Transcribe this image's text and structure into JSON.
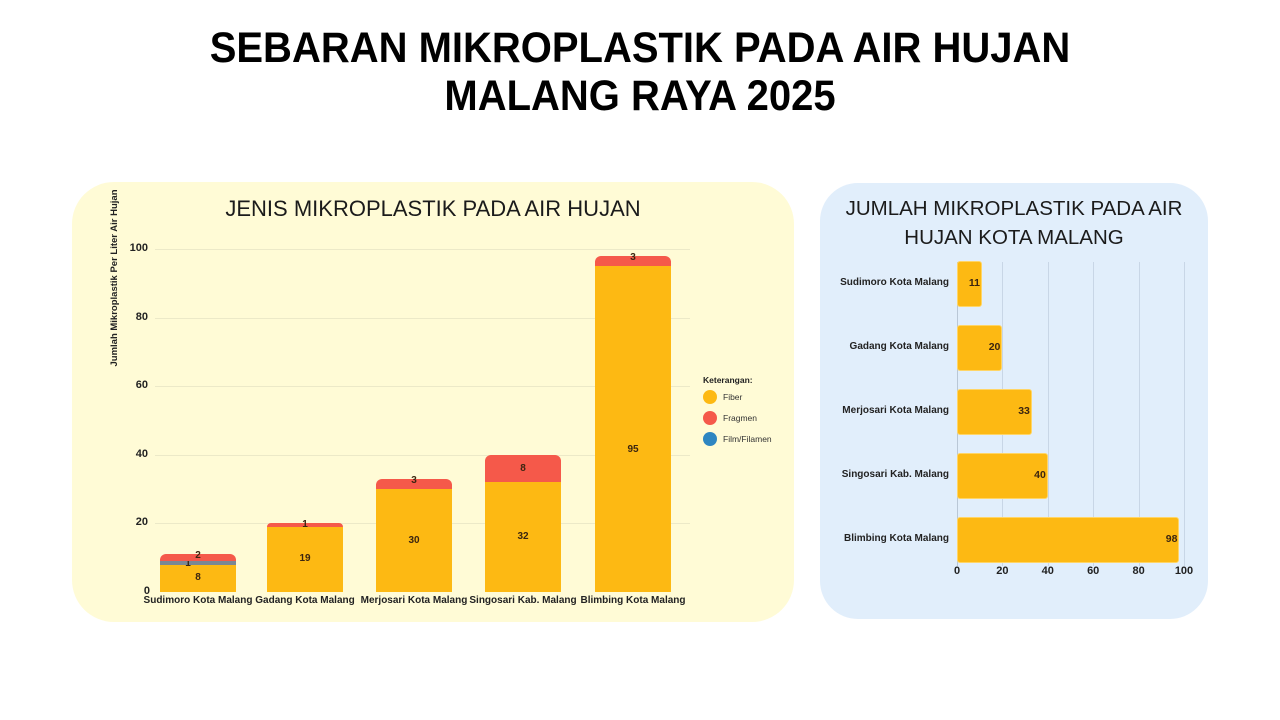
{
  "header": {
    "title_line1": "SEBARAN MIKROPLASTIK PADA AIR HUJAN",
    "title_line2": "MALANG RAYA 2025"
  },
  "colors": {
    "fiber": "#fdb913",
    "fragmen": "#f5594a",
    "film_filamen": "#2e86c1",
    "film_segment_rendered": "#7b8794",
    "left_panel_bg": "#fffbd6",
    "right_panel_bg": "#e1eefb"
  },
  "left_chart": {
    "title": "JENIS MIKROPLASTIK PADA AIR HUJAN",
    "ylabel": "Jumlah Mikroplastik Per Liter Air Hujan",
    "yticks": [
      "0",
      "20",
      "40",
      "60",
      "80",
      "100"
    ],
    "categories": [
      "Sudimoro Kota Malang",
      "Gadang Kota Malang",
      "Merjosari Kota Malang",
      "Singosari Kab. Malang",
      "Blimbing Kota Malang"
    ],
    "fiber_labels": [
      "8",
      "19",
      "30",
      "32",
      "95"
    ],
    "film_labels": [
      "1",
      "",
      "",
      "",
      ""
    ],
    "fragmen_labels": [
      "2",
      "1",
      "3",
      "8",
      "3"
    ],
    "legend": {
      "title": "Keterangan:",
      "items": [
        "Fiber",
        "Fragmen",
        "Film/Filamen"
      ]
    }
  },
  "right_chart": {
    "title_line1": "JUMLAH MIKROPLASTIK PADA AIR",
    "title_line2": "HUJAN KOTA MALANG",
    "categories": [
      "Sudimoro Kota Malang",
      "Gadang Kota Malang",
      "Merjosari Kota Malang",
      "Singosari Kab. Malang",
      "Blimbing Kota Malang"
    ],
    "value_labels": [
      "11",
      "20",
      "33",
      "40",
      "98"
    ],
    "xticks": [
      "0",
      "20",
      "40",
      "60",
      "80",
      "100"
    ]
  },
  "chart_data": [
    {
      "type": "bar",
      "stacked": true,
      "title": "JENIS MIKROPLASTIK PADA AIR HUJAN",
      "xlabel": "",
      "ylabel": "Jumlah Mikroplastik Per Liter Air Hujan",
      "ylim": [
        0,
        100
      ],
      "yticks": [
        0,
        20,
        40,
        60,
        80,
        100
      ],
      "grid": true,
      "legend_position": "right",
      "legend_title": "Keterangan:",
      "categories": [
        "Sudimoro Kota Malang",
        "Gadang Kota Malang",
        "Merjosari Kota Malang",
        "Singosari Kab. Malang",
        "Blimbing Kota Malang"
      ],
      "series": [
        {
          "name": "Fiber",
          "color": "#fdb913",
          "values": [
            8,
            19,
            30,
            32,
            95
          ]
        },
        {
          "name": "Film/Filamen",
          "color": "#2e86c1",
          "values": [
            1,
            0,
            0,
            0,
            0
          ]
        },
        {
          "name": "Fragmen",
          "color": "#f5594a",
          "values": [
            2,
            1,
            3,
            8,
            3
          ]
        }
      ]
    },
    {
      "type": "bar",
      "orientation": "horizontal",
      "title": "JUMLAH MIKROPLASTIK PADA AIR HUJAN KOTA MALANG",
      "xlabel": "",
      "ylabel": "",
      "xlim": [
        0,
        100
      ],
      "xticks": [
        0,
        20,
        40,
        60,
        80,
        100
      ],
      "grid": true,
      "categories": [
        "Sudimoro Kota Malang",
        "Gadang Kota Malang",
        "Merjosari Kota Malang",
        "Singosari Kab. Malang",
        "Blimbing Kota Malang"
      ],
      "values": [
        11,
        20,
        33,
        40,
        98
      ]
    }
  ]
}
